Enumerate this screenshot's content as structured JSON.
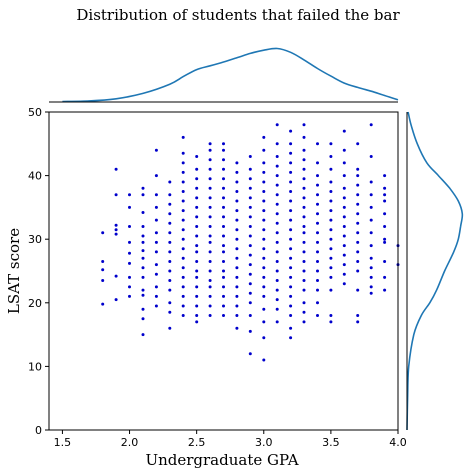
{
  "chart_data": {
    "type": "scatter",
    "title": "Distribution of students that failed the bar",
    "xlabel": "Undergraduate GPA",
    "ylabel": "LSAT score",
    "xlim": [
      1.4,
      4.0
    ],
    "ylim": [
      0,
      50
    ],
    "xticks": [
      "1.5",
      "2.0",
      "2.5",
      "3.0",
      "3.5",
      "4.0"
    ],
    "yticks": [
      "0",
      "10",
      "20",
      "30",
      "40",
      "50"
    ],
    "grid": false,
    "legend": "none",
    "colors": {
      "points": "#0000cc",
      "kde": "#1f77b4"
    },
    "marginal_x_kde": {
      "x": [
        1.5,
        1.7,
        1.9,
        2.1,
        2.3,
        2.4,
        2.5,
        2.6,
        2.7,
        2.8,
        2.9,
        3.0,
        3.1,
        3.2,
        3.3,
        3.4,
        3.5,
        3.6,
        3.7,
        3.8,
        3.9,
        4.0
      ],
      "density": [
        0.01,
        0.02,
        0.06,
        0.16,
        0.33,
        0.47,
        0.6,
        0.67,
        0.74,
        0.82,
        0.9,
        0.96,
        0.99,
        0.92,
        0.78,
        0.62,
        0.48,
        0.35,
        0.27,
        0.2,
        0.12,
        0.04
      ]
    },
    "marginal_y_kde": {
      "y": [
        0,
        5,
        10,
        15,
        18,
        20,
        22,
        25,
        28,
        30,
        32,
        34,
        36,
        38,
        40,
        42,
        45,
        48,
        50
      ],
      "density": [
        0.0,
        0.01,
        0.03,
        0.12,
        0.25,
        0.4,
        0.52,
        0.66,
        0.82,
        0.9,
        0.94,
        0.97,
        0.9,
        0.75,
        0.55,
        0.35,
        0.18,
        0.07,
        0.02
      ]
    },
    "x_values": [
      1.8,
      1.9,
      2.0,
      2.1,
      2.2,
      2.3,
      2.4,
      2.5,
      2.6,
      2.7,
      2.8,
      2.9,
      3.0,
      3.1,
      3.2,
      3.3,
      3.4,
      3.5,
      3.6,
      3.7,
      3.8,
      3.9,
      4.0
    ],
    "columns": [
      [
        19.8,
        23.5,
        25.2,
        26.5,
        31.0
      ],
      [
        20.5,
        24.2,
        30.8,
        31.5,
        32.2,
        37.0,
        41.0
      ],
      [
        21.0,
        22.5,
        24.0,
        26.2,
        27.8,
        29.5,
        32.0,
        35.0,
        37.0
      ],
      [
        15.0,
        17.5,
        19.0,
        21.2,
        22.0,
        24.0,
        25.5,
        27.0,
        28.2,
        29.5,
        30.5,
        32.0,
        34.2,
        37.0,
        38.0
      ],
      [
        19.5,
        21.0,
        22.5,
        24.5,
        26.0,
        28.0,
        29.5,
        31.0,
        33.0,
        35.0,
        37.0,
        40.0,
        44.0
      ],
      [
        16.0,
        18.5,
        20.0,
        22.0,
        23.5,
        25.0,
        26.5,
        28.0,
        29.5,
        31.0,
        32.5,
        34.0,
        35.5,
        37.0,
        39.0
      ],
      [
        18.0,
        19.5,
        21.0,
        22.5,
        24.0,
        25.5,
        27.0,
        28.5,
        30.0,
        31.5,
        33.0,
        34.5,
        36.0,
        37.5,
        39.0,
        40.5,
        42.0,
        43.5,
        46.0
      ],
      [
        17.0,
        18.0,
        19.5,
        21.0,
        22.5,
        24.0,
        25.0,
        26.5,
        28.0,
        29.0,
        30.5,
        32.0,
        33.5,
        35.0,
        36.5,
        38.0,
        39.5,
        41.0,
        43.0
      ],
      [
        18.0,
        19.5,
        21.0,
        22.5,
        23.5,
        25.0,
        26.5,
        28.0,
        29.5,
        30.5,
        32.0,
        33.5,
        35.0,
        36.5,
        38.0,
        39.5,
        41.0,
        42.5,
        44.0,
        45.0
      ],
      [
        18.0,
        19.5,
        21.0,
        22.5,
        24.0,
        25.0,
        26.5,
        28.0,
        29.0,
        30.5,
        32.0,
        33.5,
        35.0,
        36.5,
        38.0,
        39.5,
        41.0,
        42.5,
        44.0,
        45.0
      ],
      [
        16.0,
        18.0,
        19.5,
        21.0,
        22.5,
        24.0,
        25.5,
        27.0,
        28.5,
        30.0,
        31.5,
        33.0,
        34.5,
        36.0,
        37.5,
        39.0,
        40.5,
        42.0
      ],
      [
        12.0,
        15.5,
        18.0,
        20.0,
        21.5,
        23.0,
        24.5,
        26.0,
        27.5,
        29.0,
        30.5,
        32.0,
        33.5,
        35.0,
        36.5,
        38.0,
        39.5,
        41.0,
        43.0
      ],
      [
        11.0,
        14.5,
        17.0,
        19.0,
        21.0,
        22.5,
        24.0,
        25.5,
        27.0,
        28.5,
        30.0,
        31.5,
        33.0,
        34.5,
        36.0,
        37.5,
        39.0,
        40.5,
        42.0,
        44.0,
        46.0
      ],
      [
        17.0,
        19.0,
        20.5,
        22.0,
        23.5,
        25.0,
        26.5,
        28.0,
        29.5,
        31.0,
        32.5,
        34.0,
        35.5,
        37.0,
        38.5,
        40.0,
        41.5,
        43.0,
        45.0,
        48.0
      ],
      [
        14.5,
        16.0,
        18.0,
        19.5,
        21.0,
        22.5,
        24.0,
        25.5,
        27.0,
        28.5,
        30.0,
        31.5,
        33.0,
        34.5,
        36.0,
        37.5,
        39.0,
        40.5,
        42.0,
        43.5,
        45.0,
        47.0
      ],
      [
        17.0,
        18.5,
        20.0,
        22.0,
        23.5,
        25.0,
        26.5,
        28.0,
        29.5,
        31.0,
        32.0,
        33.5,
        35.0,
        36.5,
        38.0,
        39.5,
        41.0,
        42.5,
        44.0,
        46.0,
        48.0
      ],
      [
        18.0,
        20.0,
        22.0,
        23.5,
        25.0,
        26.5,
        28.0,
        29.5,
        31.0,
        32.5,
        34.0,
        35.5,
        37.0,
        38.5,
        40.0,
        42.0,
        45.0
      ],
      [
        17.0,
        18.0,
        22.0,
        24.0,
        25.5,
        27.0,
        28.5,
        30.0,
        31.5,
        33.0,
        34.5,
        36.0,
        37.5,
        39.0,
        41.0,
        43.0,
        45.0
      ],
      [
        23.0,
        24.5,
        26.0,
        27.5,
        29.0,
        30.5,
        32.0,
        33.5,
        35.0,
        36.5,
        38.0,
        40.0,
        42.0,
        44.0,
        47.0
      ],
      [
        17.0,
        18.0,
        22.0,
        25.0,
        26.5,
        28.0,
        29.5,
        31.0,
        32.5,
        34.0,
        35.5,
        37.0,
        38.5,
        40.0,
        41.0,
        45.0
      ],
      [
        21.5,
        22.5,
        24.0,
        25.5,
        27.0,
        29.0,
        31.0,
        33.0,
        35.0,
        37.0,
        39.0,
        43.0,
        48.0
      ],
      [
        22.0,
        24.0,
        26.5,
        29.5,
        30.0,
        32.0,
        34.0,
        36.0,
        37.0,
        38.0,
        40.0
      ],
      [
        26.0,
        29.0
      ]
    ]
  }
}
